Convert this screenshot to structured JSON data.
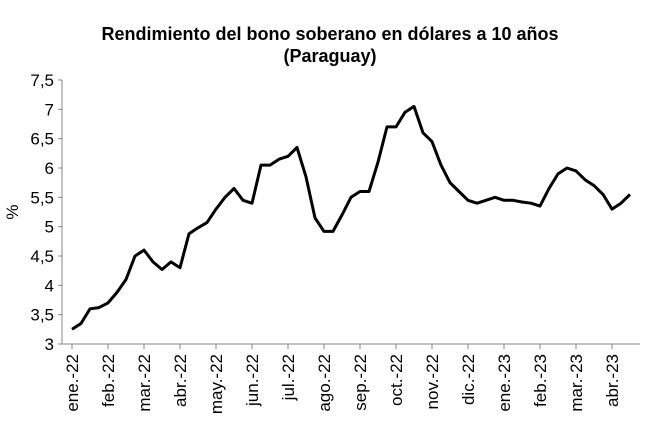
{
  "chart_data": {
    "type": "line",
    "title": "Rendimiento del bono soberano en dólares a 10 años",
    "subtitle": "(Paraguay)",
    "y_label": "%",
    "categories": [
      "ene.-22",
      null,
      null,
      null,
      "feb.-22",
      null,
      null,
      null,
      "mar.-22",
      null,
      null,
      null,
      "abr.-22",
      null,
      null,
      null,
      "may.-22",
      null,
      null,
      null,
      "jun.-22",
      null,
      null,
      null,
      "jul.-22",
      null,
      null,
      null,
      "ago.-22",
      null,
      null,
      null,
      "sep.-22",
      null,
      null,
      null,
      "oct.-22",
      null,
      null,
      null,
      "nov.-22",
      null,
      null,
      null,
      "dic.-22",
      null,
      null,
      null,
      "ene.-23",
      null,
      null,
      null,
      "feb.-23",
      null,
      null,
      null,
      "mar.-23",
      null,
      null,
      null,
      "abr.-23",
      null,
      null
    ],
    "series": [
      {
        "name": "Rendimiento",
        "color": "#000000",
        "values": [
          3.25,
          3.35,
          3.6,
          3.62,
          3.7,
          3.88,
          4.1,
          4.5,
          4.6,
          4.4,
          4.27,
          4.4,
          4.3,
          4.88,
          4.98,
          5.07,
          5.3,
          5.5,
          5.65,
          5.45,
          5.4,
          6.05,
          6.05,
          6.15,
          6.2,
          6.35,
          5.85,
          5.15,
          4.92,
          4.92,
          5.2,
          5.5,
          5.6,
          5.6,
          6.1,
          6.7,
          6.7,
          6.95,
          7.05,
          6.6,
          6.45,
          6.05,
          5.75,
          5.6,
          5.45,
          5.4,
          5.45,
          5.5,
          5.45,
          5.45,
          5.42,
          5.4,
          5.35,
          5.65,
          5.9,
          6.0,
          5.95,
          5.8,
          5.7,
          5.55,
          5.3,
          5.4,
          5.55
        ]
      }
    ],
    "ylim": [
      3,
      7.5
    ],
    "yticks": [
      3,
      {
        "value": 3.5,
        "label": "3,5"
      },
      4,
      {
        "value": 4.5,
        "label": "4,5"
      },
      5,
      {
        "value": 5.5,
        "label": "5,5"
      },
      6,
      {
        "value": 6.5,
        "label": "6,5"
      },
      7,
      {
        "value": 7.5,
        "label": "7,5"
      }
    ],
    "grid": false
  }
}
